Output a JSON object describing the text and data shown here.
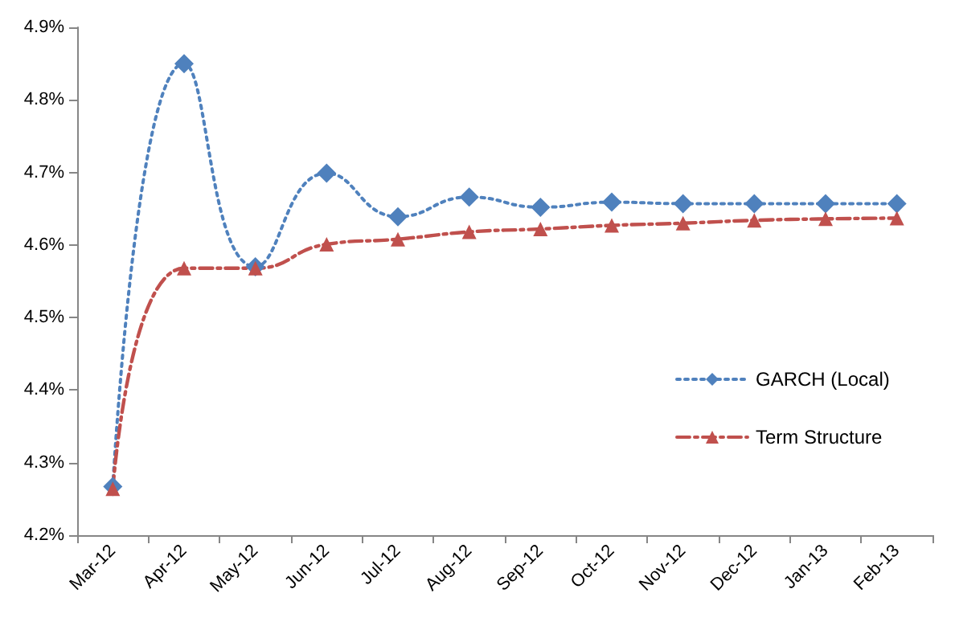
{
  "chart_data": {
    "type": "line",
    "categories": [
      "Mar-12",
      "Apr-12",
      "May-12",
      "Jun-12",
      "Jul-12",
      "Aug-12",
      "Sep-12",
      "Oct-12",
      "Nov-12",
      "Dec-12",
      "Jan-13",
      "Feb-13"
    ],
    "series": [
      {
        "name": "GARCH (Local)",
        "color": "#4f81bd",
        "marker": "diamond",
        "line_style": "dotted",
        "values": [
          4.267,
          4.85,
          4.57,
          4.699,
          4.639,
          4.666,
          4.652,
          4.659,
          4.657,
          4.657,
          4.657,
          4.657
        ]
      },
      {
        "name": "Term Structure",
        "color": "#c0504d",
        "marker": "triangle",
        "line_style": "dashed",
        "values": [
          4.264,
          4.568,
          4.568,
          4.601,
          4.608,
          4.618,
          4.622,
          4.627,
          4.63,
          4.634,
          4.636,
          4.637
        ]
      }
    ],
    "ylim": [
      4.2,
      4.9
    ],
    "yticks": [
      {
        "value": 4.2,
        "label": "4.2%"
      },
      {
        "value": 4.3,
        "label": "4.3%"
      },
      {
        "value": 4.4,
        "label": "4.4%"
      },
      {
        "value": 4.5,
        "label": "4.5%"
      },
      {
        "value": 4.6,
        "label": "4.6%"
      },
      {
        "value": 4.7,
        "label": "4.7%"
      },
      {
        "value": 4.8,
        "label": "4.8%"
      },
      {
        "value": 4.9,
        "label": "4.9%"
      }
    ],
    "grid": false,
    "legend": "right"
  }
}
